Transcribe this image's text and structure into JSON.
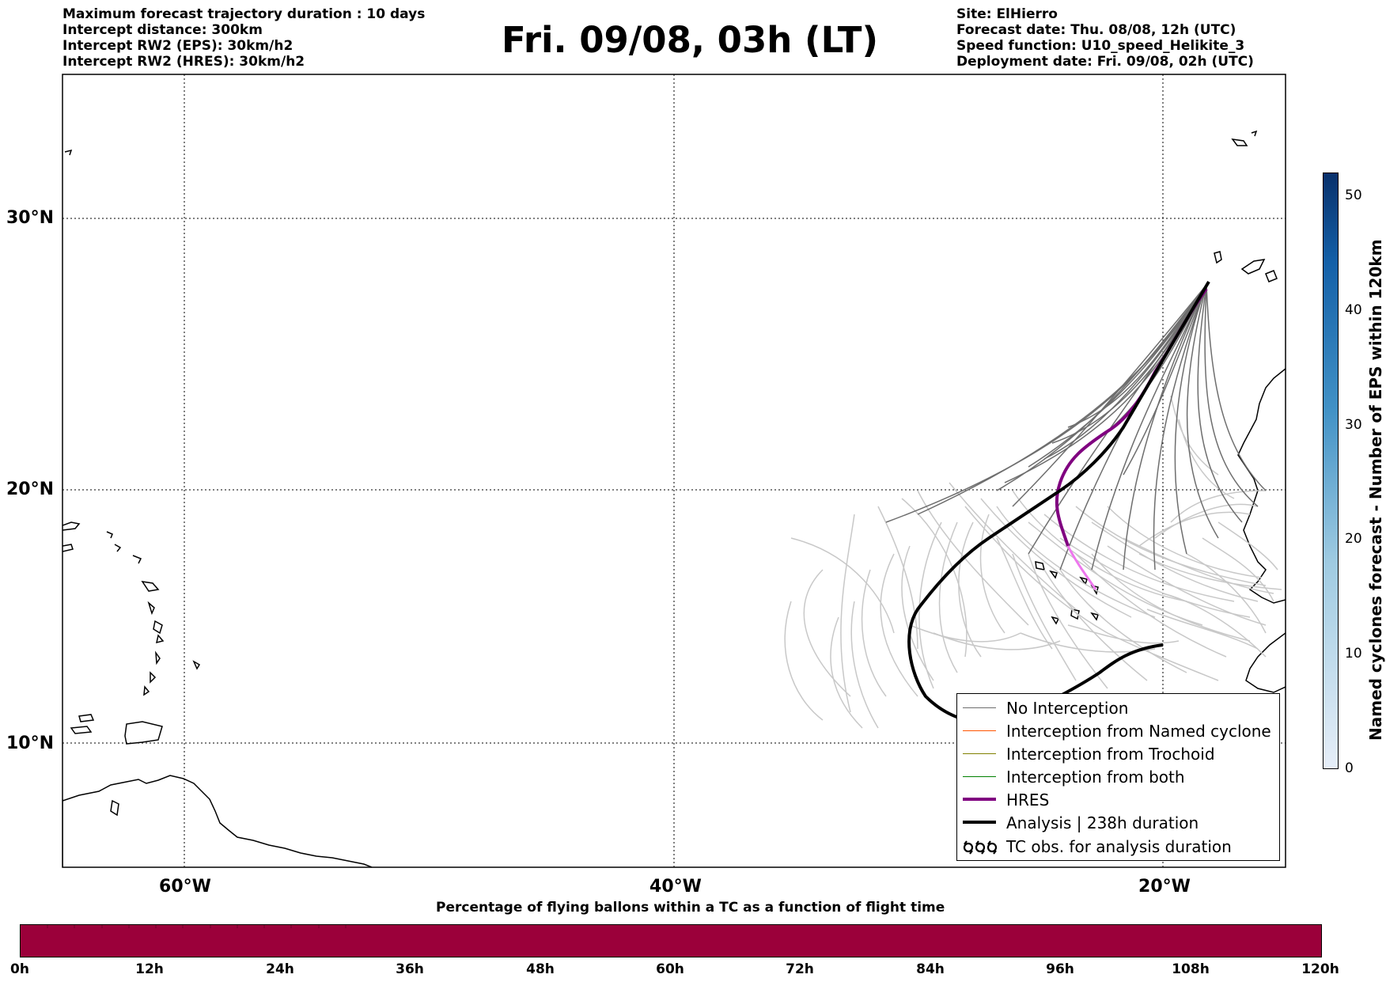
{
  "header_left": [
    "Maximum forecast trajectory duration : 10 days",
    "Intercept distance: 300km",
    "Intercept RW2 (EPS):  30km/h2",
    "Intercept RW2 (HRES): 30km/h2"
  ],
  "title": "Fri. 09/08, 03h (LT)",
  "header_right": [
    "Site: ElHierro",
    "Forecast date: Thu. 08/08, 12h (UTC)",
    "Speed function: U10_speed_Helikite_3",
    "Deployment date: Fri. 09/08, 02h (UTC)"
  ],
  "map": {
    "lat_labels": [
      "30°N",
      "20°N",
      "10°N"
    ],
    "lon_labels": [
      "60°W",
      "40°W",
      "20°W"
    ],
    "colors": {
      "eps_intercept_none_dark": "#6e6e6e",
      "eps_intercept_none_light": "#c8c8c8",
      "hres": "#800080",
      "hres_tail": "#ee77ee",
      "analysis": "#000000",
      "coast": "#000000",
      "grid": "#000000"
    }
  },
  "legend": [
    {
      "label": "No Interception",
      "color": "#6e6e6e",
      "width": 1.2,
      "icon": "line"
    },
    {
      "label": "Interception from Named cyclone",
      "color": "#ff5500",
      "width": 1.2,
      "icon": "line"
    },
    {
      "label": "Interception from Trochoid",
      "color": "#808000",
      "width": 1.2,
      "icon": "line"
    },
    {
      "label": "Interception from both",
      "color": "#008000",
      "width": 1.2,
      "icon": "line"
    },
    {
      "label": "HRES",
      "color": "#800080",
      "width": 4,
      "icon": "line"
    },
    {
      "label": "Analysis | 238h duration",
      "color": "#000000",
      "width": 4,
      "icon": "line"
    },
    {
      "label": "TC obs. for analysis duration",
      "color": "#000000",
      "width": 0,
      "icon": "cyclone-symbols-icon"
    }
  ],
  "colorbar": {
    "title": "Named cyclones forecast - Number of EPS within 120km",
    "ticks": [
      "0",
      "10",
      "20",
      "30",
      "40",
      "50"
    ],
    "range": [
      0,
      52
    ],
    "colors": [
      "#e6eef8",
      "#08306b"
    ]
  },
  "time_bar": {
    "title": "Percentage of flying ballons within a TC as a function of flight time",
    "ticks": [
      "0h",
      "12h",
      "24h",
      "36h",
      "48h",
      "60h",
      "72h",
      "84h",
      "96h",
      "108h",
      "120h"
    ],
    "fill_color": "#9b003a"
  }
}
